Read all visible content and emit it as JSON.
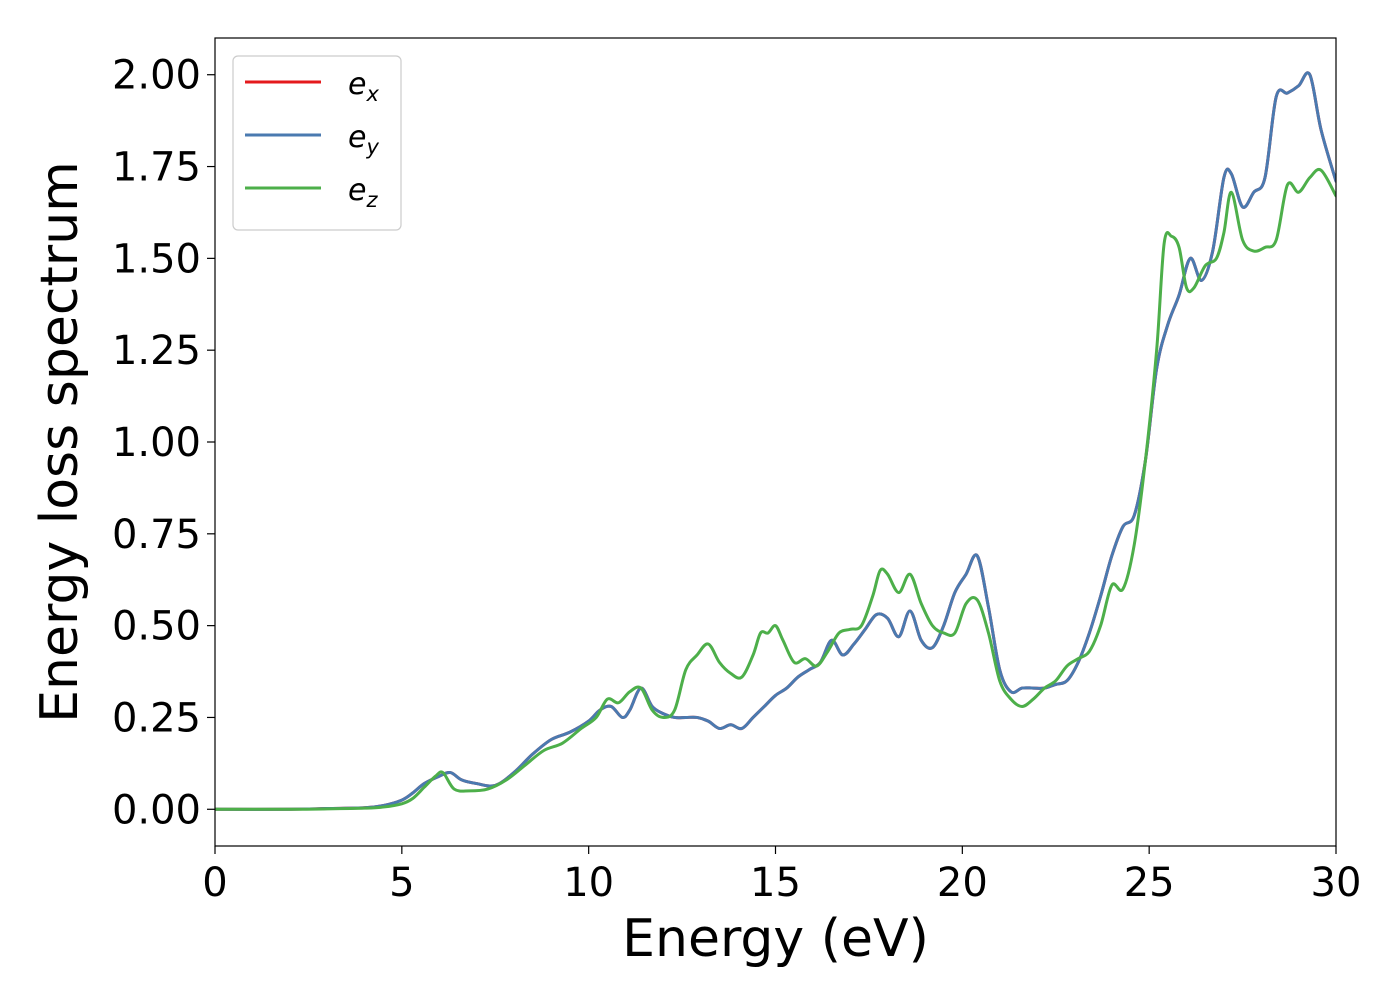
{
  "chart_data": {
    "type": "line",
    "title": "",
    "xlabel": "Energy (eV)",
    "ylabel": "Energy loss spectrum",
    "xlim": [
      0,
      30
    ],
    "ylim": [
      -0.1,
      2.1
    ],
    "xticks": [
      0,
      5,
      10,
      15,
      20,
      25,
      30
    ],
    "xtick_labels": [
      "0",
      "5",
      "10",
      "15",
      "20",
      "25",
      "30"
    ],
    "yticks": [
      0.0,
      0.25,
      0.5,
      0.75,
      1.0,
      1.25,
      1.5,
      1.75,
      2.0
    ],
    "ytick_labels": [
      "0.00",
      "0.25",
      "0.50",
      "0.75",
      "1.00",
      "1.25",
      "1.50",
      "1.75",
      "2.00"
    ],
    "grid": false,
    "legend_position": "top-left",
    "series": [
      {
        "name": "e_x",
        "label_base": "e",
        "label_sub": "x",
        "color": "#e41a1c",
        "x": [
          0,
          2,
          3,
          4,
          4.5,
          5,
          5.3,
          5.6,
          6.0,
          6.3,
          6.6,
          7.0,
          7.5,
          8.0,
          8.5,
          9.0,
          9.5,
          10.0,
          10.3,
          10.6,
          10.9,
          11.1,
          11.4,
          11.7,
          12.0,
          12.3,
          12.6,
          12.9,
          13.2,
          13.5,
          13.8,
          14.1,
          14.4,
          14.7,
          15.0,
          15.3,
          15.6,
          15.9,
          16.2,
          16.5,
          16.8,
          17.1,
          17.4,
          17.7,
          18.0,
          18.3,
          18.6,
          18.9,
          19.2,
          19.5,
          19.8,
          20.1,
          20.4,
          20.7,
          21.0,
          21.3,
          21.6,
          21.9,
          22.2,
          22.5,
          22.8,
          23.1,
          23.4,
          23.7,
          24.0,
          24.3,
          24.6,
          24.9,
          25.2,
          25.5,
          25.8,
          26.1,
          26.4,
          26.7,
          27.0,
          27.2,
          27.5,
          27.8,
          28.1,
          28.4,
          28.7,
          29.0,
          29.3,
          29.6,
          30.0
        ],
        "y": [
          0.0,
          0.0,
          0.002,
          0.004,
          0.01,
          0.025,
          0.045,
          0.07,
          0.09,
          0.1,
          0.08,
          0.07,
          0.065,
          0.1,
          0.15,
          0.19,
          0.21,
          0.24,
          0.27,
          0.28,
          0.25,
          0.27,
          0.33,
          0.28,
          0.26,
          0.25,
          0.25,
          0.25,
          0.24,
          0.22,
          0.23,
          0.22,
          0.25,
          0.28,
          0.31,
          0.33,
          0.36,
          0.38,
          0.4,
          0.46,
          0.42,
          0.45,
          0.49,
          0.53,
          0.52,
          0.47,
          0.54,
          0.46,
          0.44,
          0.5,
          0.59,
          0.64,
          0.69,
          0.55,
          0.38,
          0.32,
          0.33,
          0.33,
          0.33,
          0.34,
          0.35,
          0.4,
          0.48,
          0.58,
          0.69,
          0.77,
          0.8,
          0.95,
          1.2,
          1.32,
          1.4,
          1.5,
          1.44,
          1.52,
          1.72,
          1.73,
          1.64,
          1.68,
          1.72,
          1.94,
          1.95,
          1.97,
          2.0,
          1.85,
          1.71
        ]
      },
      {
        "name": "e_y",
        "label_base": "e",
        "label_sub": "y",
        "color": "#4a7ab0",
        "x": [
          0,
          2,
          3,
          4,
          4.5,
          5,
          5.3,
          5.6,
          6.0,
          6.3,
          6.6,
          7.0,
          7.5,
          8.0,
          8.5,
          9.0,
          9.5,
          10.0,
          10.3,
          10.6,
          10.9,
          11.1,
          11.4,
          11.7,
          12.0,
          12.3,
          12.6,
          12.9,
          13.2,
          13.5,
          13.8,
          14.1,
          14.4,
          14.7,
          15.0,
          15.3,
          15.6,
          15.9,
          16.2,
          16.5,
          16.8,
          17.1,
          17.4,
          17.7,
          18.0,
          18.3,
          18.6,
          18.9,
          19.2,
          19.5,
          19.8,
          20.1,
          20.4,
          20.7,
          21.0,
          21.3,
          21.6,
          21.9,
          22.2,
          22.5,
          22.8,
          23.1,
          23.4,
          23.7,
          24.0,
          24.3,
          24.6,
          24.9,
          25.2,
          25.5,
          25.8,
          26.1,
          26.4,
          26.7,
          27.0,
          27.2,
          27.5,
          27.8,
          28.1,
          28.4,
          28.7,
          29.0,
          29.3,
          29.6,
          30.0
        ],
        "y": [
          0.0,
          0.0,
          0.002,
          0.004,
          0.01,
          0.025,
          0.045,
          0.07,
          0.09,
          0.1,
          0.08,
          0.07,
          0.065,
          0.1,
          0.15,
          0.19,
          0.21,
          0.24,
          0.27,
          0.28,
          0.25,
          0.27,
          0.33,
          0.28,
          0.26,
          0.25,
          0.25,
          0.25,
          0.24,
          0.22,
          0.23,
          0.22,
          0.25,
          0.28,
          0.31,
          0.33,
          0.36,
          0.38,
          0.4,
          0.46,
          0.42,
          0.45,
          0.49,
          0.53,
          0.52,
          0.47,
          0.54,
          0.46,
          0.44,
          0.5,
          0.59,
          0.64,
          0.69,
          0.55,
          0.38,
          0.32,
          0.33,
          0.33,
          0.33,
          0.34,
          0.35,
          0.4,
          0.48,
          0.58,
          0.69,
          0.77,
          0.8,
          0.95,
          1.2,
          1.32,
          1.4,
          1.5,
          1.44,
          1.52,
          1.72,
          1.73,
          1.64,
          1.68,
          1.72,
          1.94,
          1.95,
          1.97,
          2.0,
          1.85,
          1.71
        ]
      },
      {
        "name": "e_z",
        "label_base": "e",
        "label_sub": "z",
        "color": "#4daf4a",
        "x": [
          0,
          2,
          3,
          4,
          4.5,
          5,
          5.3,
          5.6,
          5.9,
          6.1,
          6.4,
          6.8,
          7.3,
          7.8,
          8.3,
          8.8,
          9.3,
          9.8,
          10.2,
          10.5,
          10.8,
          11.1,
          11.4,
          11.7,
          12.0,
          12.3,
          12.6,
          12.9,
          13.2,
          13.5,
          13.8,
          14.1,
          14.4,
          14.6,
          14.8,
          15.0,
          15.2,
          15.5,
          15.8,
          16.1,
          16.4,
          16.7,
          17.0,
          17.3,
          17.6,
          17.8,
          18.0,
          18.3,
          18.6,
          18.9,
          19.2,
          19.5,
          19.8,
          20.1,
          20.4,
          20.7,
          21.0,
          21.3,
          21.6,
          21.9,
          22.2,
          22.5,
          22.8,
          23.1,
          23.4,
          23.7,
          24.0,
          24.3,
          24.6,
          24.9,
          25.2,
          25.4,
          25.6,
          25.8,
          26.0,
          26.2,
          26.5,
          26.8,
          27.0,
          27.2,
          27.5,
          27.8,
          28.1,
          28.4,
          28.7,
          29.0,
          29.3,
          29.6,
          30.0
        ],
        "y": [
          0.0,
          0.0,
          0.001,
          0.003,
          0.006,
          0.015,
          0.03,
          0.06,
          0.09,
          0.1,
          0.055,
          0.05,
          0.055,
          0.08,
          0.12,
          0.16,
          0.18,
          0.22,
          0.25,
          0.3,
          0.29,
          0.32,
          0.33,
          0.27,
          0.25,
          0.27,
          0.38,
          0.42,
          0.45,
          0.4,
          0.37,
          0.36,
          0.42,
          0.48,
          0.48,
          0.5,
          0.46,
          0.4,
          0.41,
          0.39,
          0.43,
          0.48,
          0.49,
          0.5,
          0.58,
          0.65,
          0.64,
          0.59,
          0.64,
          0.56,
          0.5,
          0.48,
          0.48,
          0.56,
          0.57,
          0.48,
          0.35,
          0.3,
          0.28,
          0.3,
          0.33,
          0.35,
          0.39,
          0.41,
          0.43,
          0.5,
          0.61,
          0.6,
          0.72,
          0.95,
          1.25,
          1.54,
          1.56,
          1.53,
          1.42,
          1.42,
          1.48,
          1.5,
          1.57,
          1.68,
          1.55,
          1.52,
          1.53,
          1.55,
          1.7,
          1.68,
          1.72,
          1.74,
          1.67
        ]
      }
    ]
  }
}
